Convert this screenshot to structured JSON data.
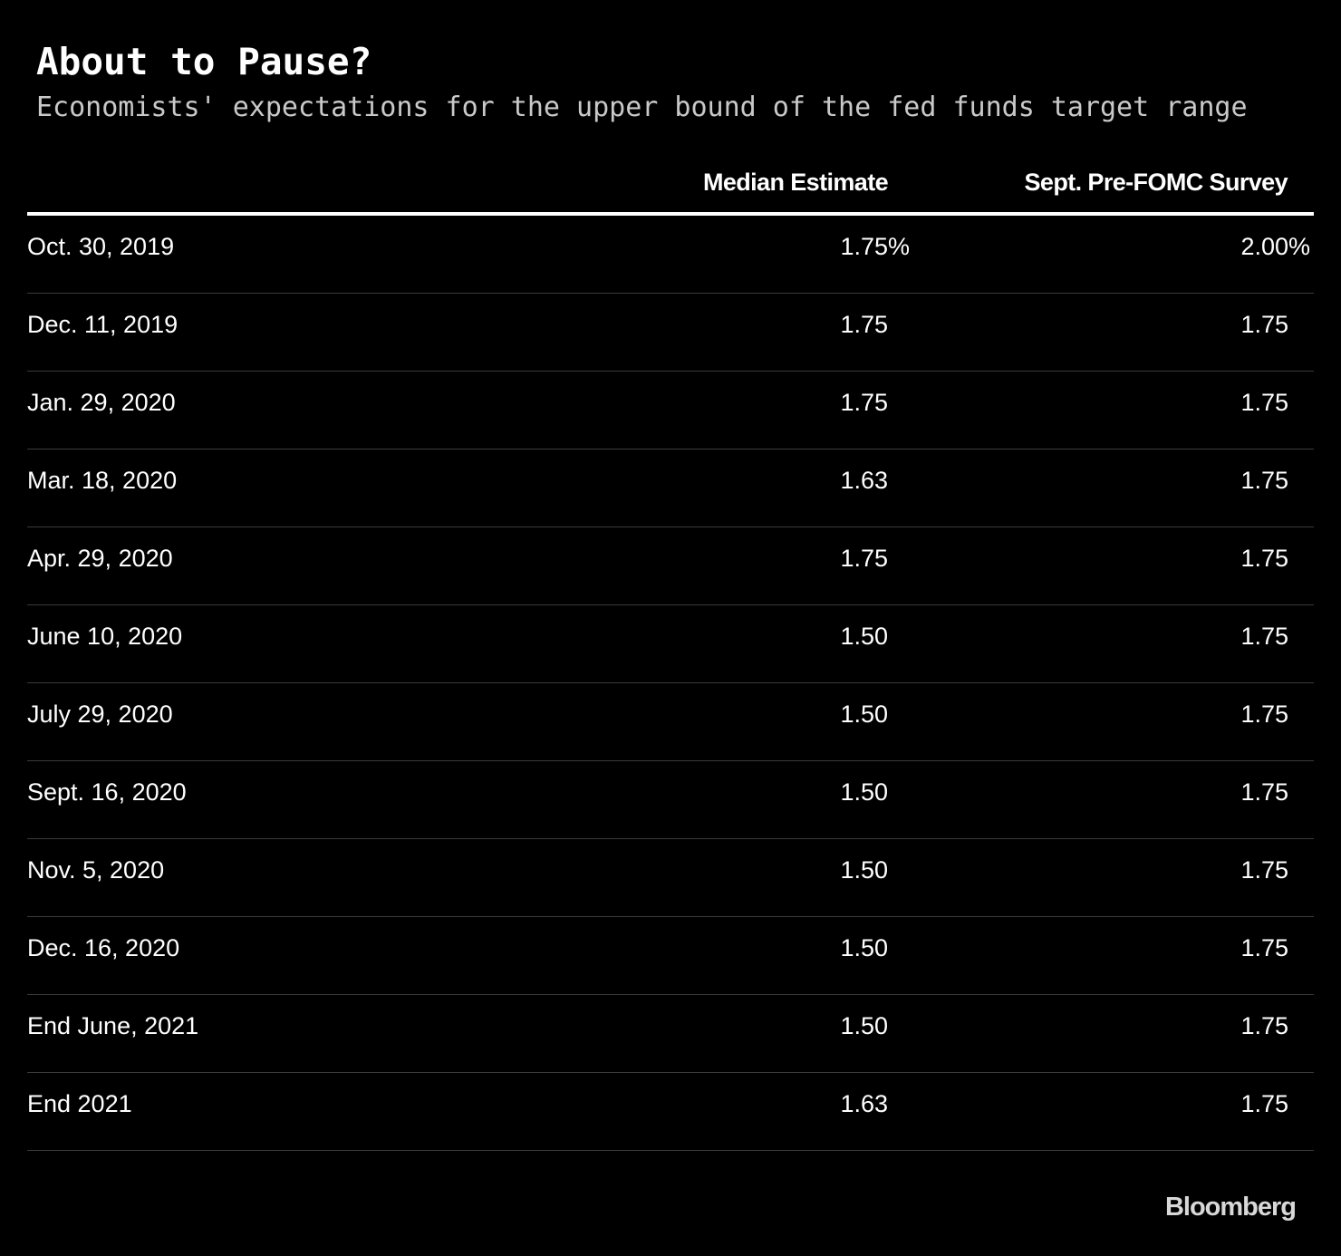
{
  "chart_data": {
    "type": "table",
    "title": "About to Pause?",
    "subtitle": "Economists' expectations for the upper bound of the fed funds target range",
    "columns": [
      "",
      "Median Estimate",
      "Sept. Pre-FOMC Survey"
    ],
    "rows": [
      {
        "label": "Oct. 30, 2019",
        "median": "1.75",
        "survey": "2.00",
        "suffix": "%"
      },
      {
        "label": "Dec. 11, 2019",
        "median": "1.75",
        "survey": "1.75",
        "suffix": ""
      },
      {
        "label": "Jan. 29, 2020",
        "median": "1.75",
        "survey": "1.75",
        "suffix": ""
      },
      {
        "label": "Mar. 18, 2020",
        "median": "1.63",
        "survey": "1.75",
        "suffix": ""
      },
      {
        "label": "Apr. 29, 2020",
        "median": "1.75",
        "survey": "1.75",
        "suffix": ""
      },
      {
        "label": "June 10, 2020",
        "median": "1.50",
        "survey": "1.75",
        "suffix": ""
      },
      {
        "label": "July 29, 2020",
        "median": "1.50",
        "survey": "1.75",
        "suffix": ""
      },
      {
        "label": "Sept. 16, 2020",
        "median": "1.50",
        "survey": "1.75",
        "suffix": ""
      },
      {
        "label": "Nov. 5, 2020",
        "median": "1.50",
        "survey": "1.75",
        "suffix": ""
      },
      {
        "label": "Dec. 16, 2020",
        "median": "1.50",
        "survey": "1.75",
        "suffix": ""
      },
      {
        "label": "End June, 2021",
        "median": "1.50",
        "survey": "1.75",
        "suffix": ""
      },
      {
        "label": "End 2021",
        "median": "1.63",
        "survey": "1.75",
        "suffix": ""
      }
    ]
  },
  "brand": "Bloomberg",
  "colors": {
    "background": "#000000",
    "text": "#ffffff",
    "subtitle": "#c9c9c9",
    "divider": "#3a3a3a"
  }
}
